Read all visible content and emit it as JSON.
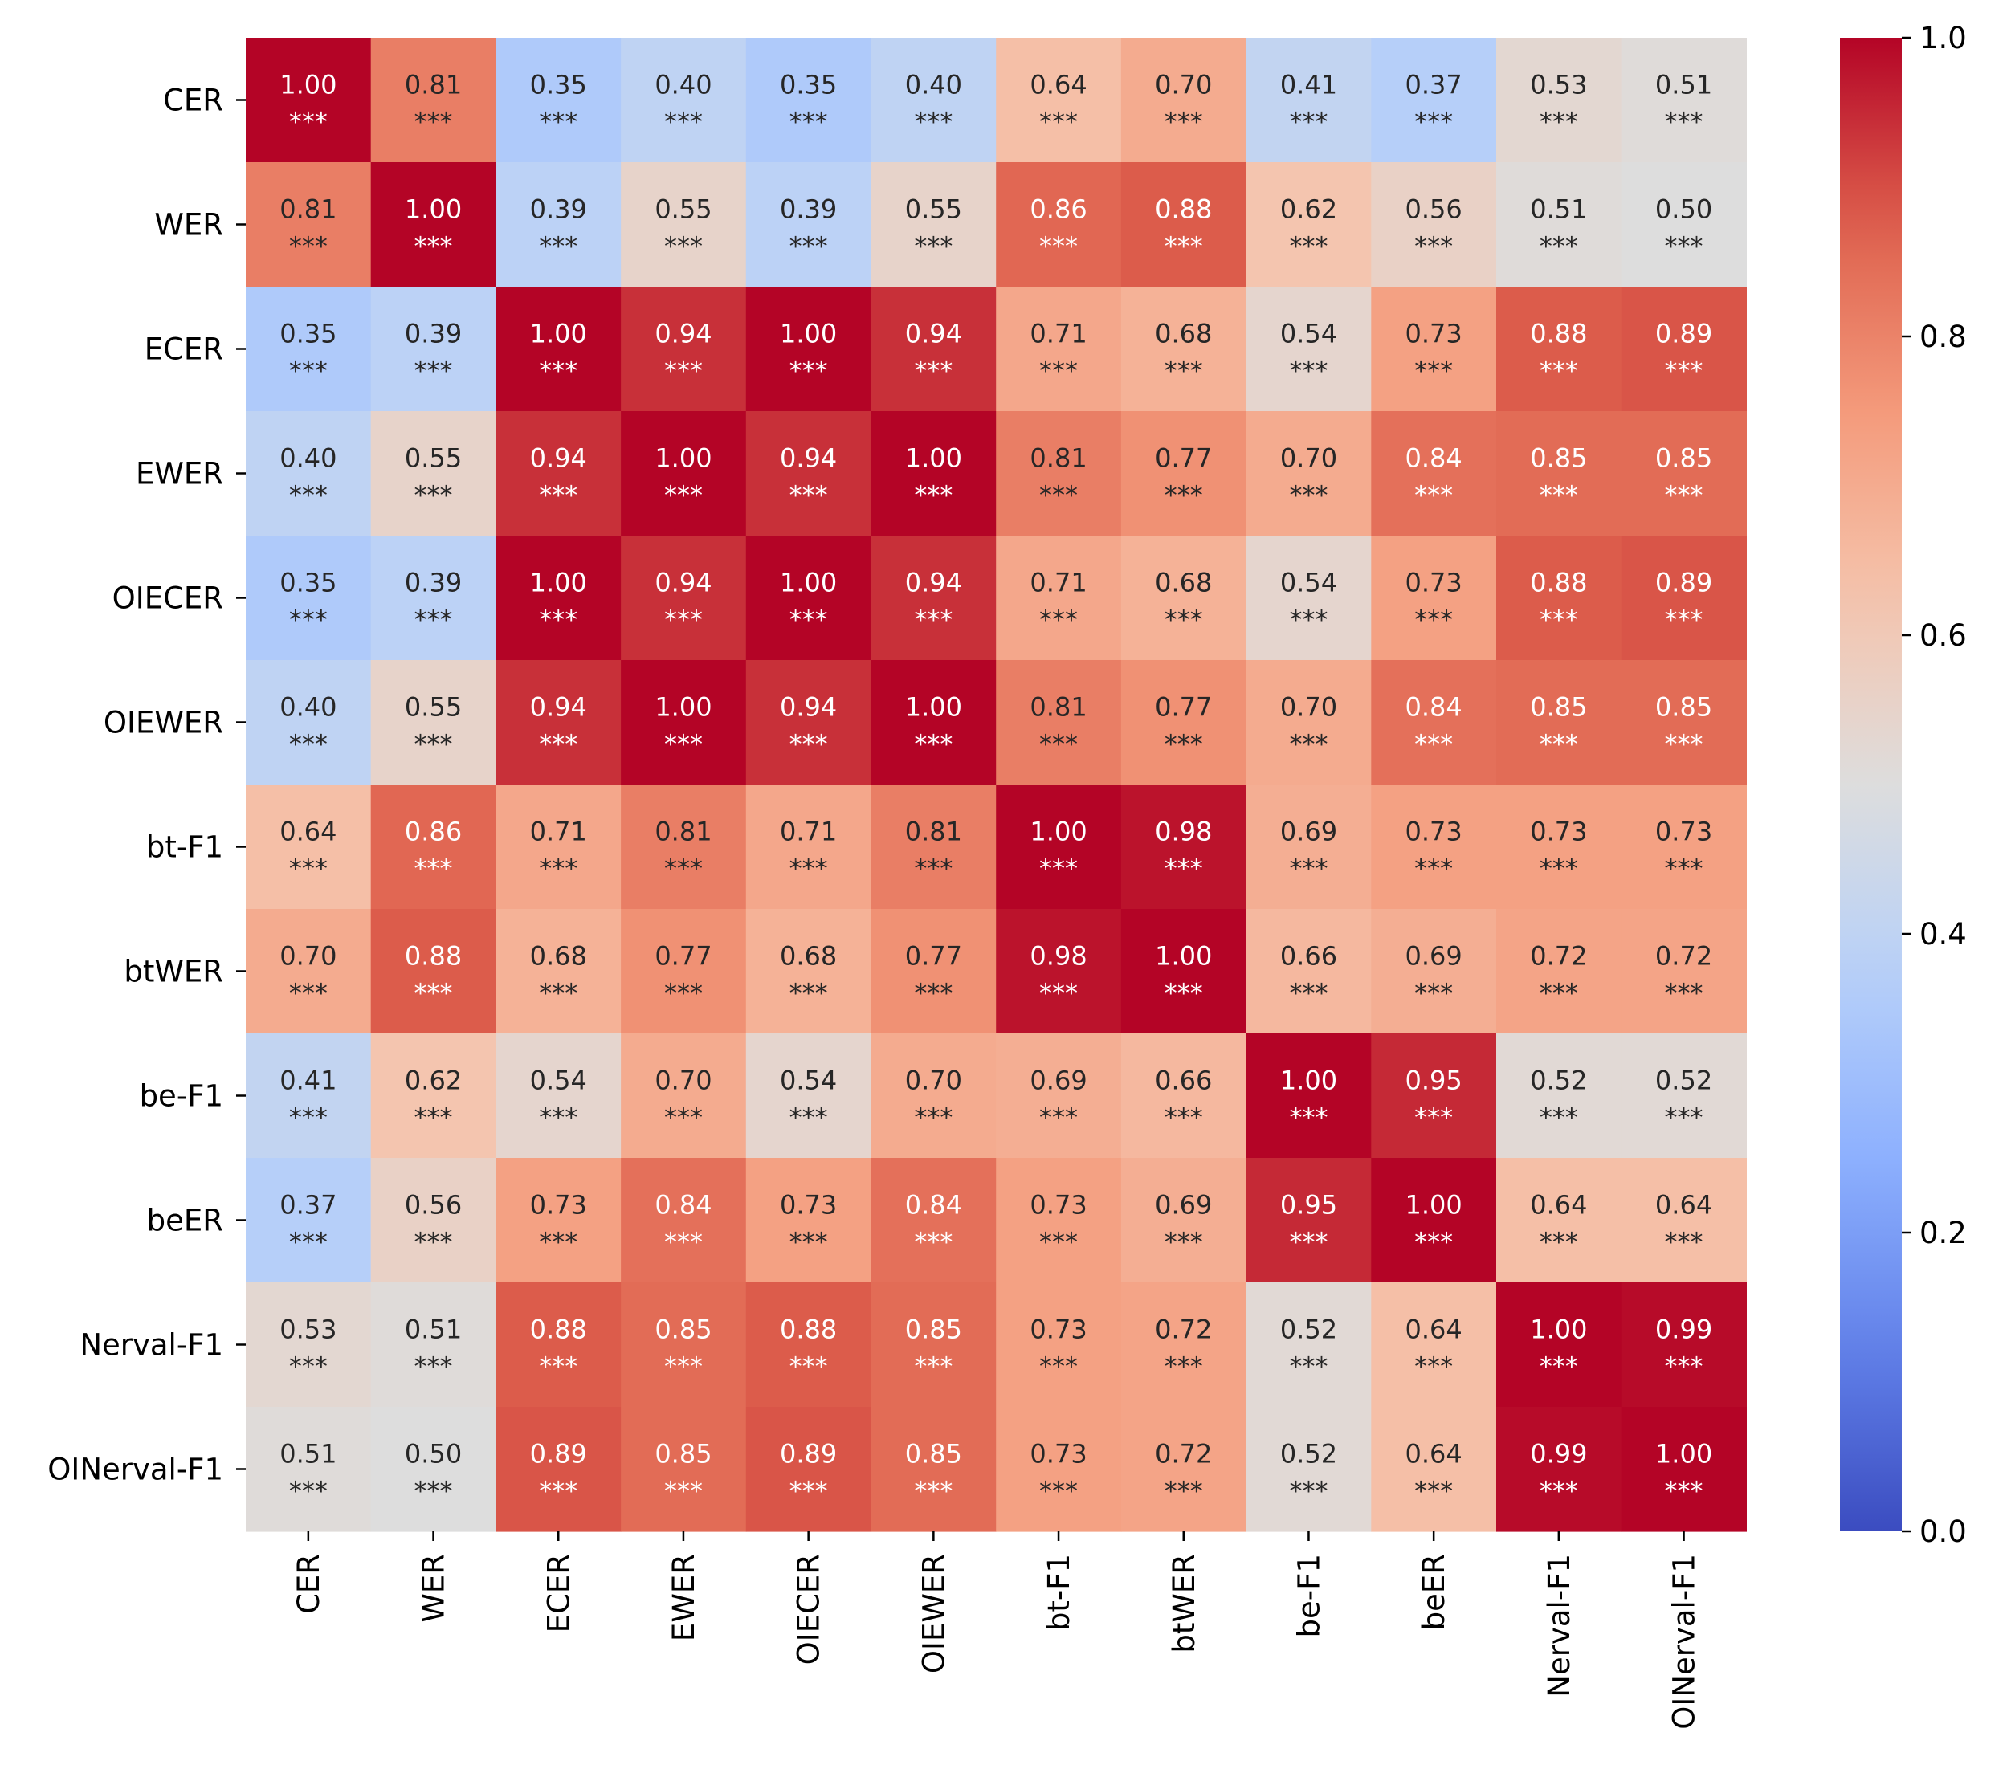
{
  "chart_data": {
    "type": "heatmap",
    "title": "",
    "xlabel": "",
    "ylabel": "",
    "rows": [
      "CER",
      "WER",
      "ECER",
      "EWER",
      "OIECER",
      "OIEWER",
      "bt-F1",
      "btWER",
      "be-F1",
      "beER",
      "Nerval-F1",
      "OINerval-F1"
    ],
    "columns": [
      "CER",
      "WER",
      "ECER",
      "EWER",
      "OIECER",
      "OIEWER",
      "bt-F1",
      "btWER",
      "be-F1",
      "beER",
      "Nerval-F1",
      "OINerval-F1"
    ],
    "values": [
      [
        1.0,
        0.81,
        0.35,
        0.4,
        0.35,
        0.4,
        0.64,
        0.7,
        0.41,
        0.37,
        0.53,
        0.51
      ],
      [
        0.81,
        1.0,
        0.39,
        0.55,
        0.39,
        0.55,
        0.86,
        0.88,
        0.62,
        0.56,
        0.51,
        0.5
      ],
      [
        0.35,
        0.39,
        1.0,
        0.94,
        1.0,
        0.94,
        0.71,
        0.68,
        0.54,
        0.73,
        0.88,
        0.89
      ],
      [
        0.4,
        0.55,
        0.94,
        1.0,
        0.94,
        1.0,
        0.81,
        0.77,
        0.7,
        0.84,
        0.85,
        0.85
      ],
      [
        0.35,
        0.39,
        1.0,
        0.94,
        1.0,
        0.94,
        0.71,
        0.68,
        0.54,
        0.73,
        0.88,
        0.89
      ],
      [
        0.4,
        0.55,
        0.94,
        1.0,
        0.94,
        1.0,
        0.81,
        0.77,
        0.7,
        0.84,
        0.85,
        0.85
      ],
      [
        0.64,
        0.86,
        0.71,
        0.81,
        0.71,
        0.81,
        1.0,
        0.98,
        0.69,
        0.73,
        0.73,
        0.73
      ],
      [
        0.7,
        0.88,
        0.68,
        0.77,
        0.68,
        0.77,
        0.98,
        1.0,
        0.66,
        0.69,
        0.72,
        0.72
      ],
      [
        0.41,
        0.62,
        0.54,
        0.7,
        0.54,
        0.7,
        0.69,
        0.66,
        1.0,
        0.95,
        0.52,
        0.52
      ],
      [
        0.37,
        0.56,
        0.73,
        0.84,
        0.73,
        0.84,
        0.73,
        0.69,
        0.95,
        1.0,
        0.64,
        0.64
      ],
      [
        0.53,
        0.51,
        0.88,
        0.85,
        0.88,
        0.85,
        0.73,
        0.72,
        0.52,
        0.64,
        1.0,
        0.99
      ],
      [
        0.51,
        0.5,
        0.89,
        0.85,
        0.89,
        0.85,
        0.73,
        0.72,
        0.52,
        0.64,
        0.99,
        1.0
      ]
    ],
    "significance": "***",
    "colormap": "coolwarm",
    "colorbar": {
      "range": [
        0.0,
        1.0
      ],
      "ticks": [
        "0.0",
        "0.2",
        "0.4",
        "0.6",
        "0.8",
        "1.0"
      ],
      "colors": {
        "low": "#3b4cc0",
        "mid": "#dddddd",
        "high": "#b40426"
      }
    },
    "grid": false,
    "legend": "colorbar-right"
  }
}
